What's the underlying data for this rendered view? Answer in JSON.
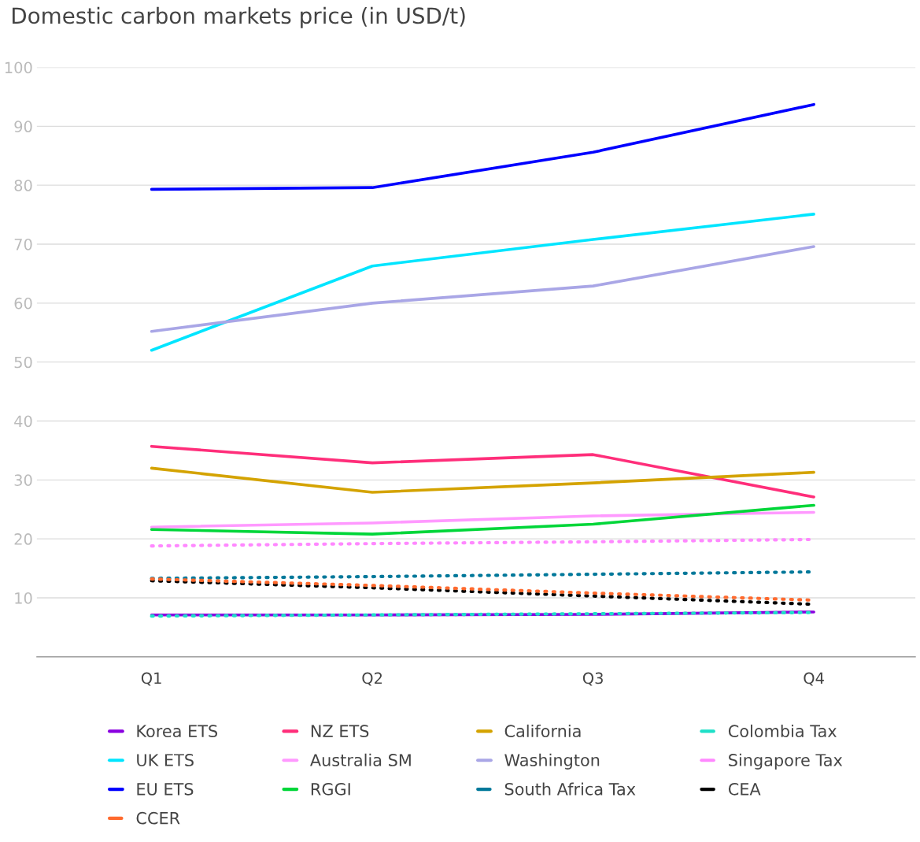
{
  "chart_data": {
    "type": "line",
    "title": "Domestic carbon markets price (in USD/t)",
    "categories": [
      "Q1",
      "Q2",
      "Q3",
      "Q4"
    ],
    "ylim": [
      0,
      100
    ],
    "yticks": [
      10,
      20,
      30,
      40,
      50,
      60,
      70,
      80,
      90,
      100
    ],
    "grid": "y",
    "legend": "bottom",
    "marker": "none",
    "series": [
      {
        "name": "Korea ETS",
        "color": "#8a00e0",
        "line_style": "solid",
        "values": [
          7.1,
          7.1,
          7.2,
          7.6
        ]
      },
      {
        "name": "NZ ETS",
        "color": "#ff2e7a",
        "line_style": "solid",
        "values": [
          35.7,
          32.9,
          34.3,
          27.1
        ]
      },
      {
        "name": "California",
        "color": "#d4a300",
        "line_style": "solid",
        "values": [
          32,
          27.9,
          29.5,
          31.3
        ]
      },
      {
        "name": "Colombia Tax",
        "color": "#1ee0c8",
        "line_style": "dotted",
        "values": [
          6.9,
          7.1,
          7.3,
          7.5
        ]
      },
      {
        "name": "UK ETS",
        "color": "#00e5ff",
        "line_style": "solid",
        "values": [
          52,
          66.3,
          70.8,
          75.1
        ]
      },
      {
        "name": "Australia SM",
        "color": "#ff99ff",
        "line_style": "solid",
        "values": [
          22,
          22.7,
          23.9,
          24.5
        ]
      },
      {
        "name": "Washington",
        "color": "#a9a6e6",
        "line_style": "solid",
        "values": [
          55.2,
          60,
          62.9,
          69.6
        ]
      },
      {
        "name": "Singapore Tax",
        "color": "#ff88ff",
        "line_style": "dotted",
        "values": [
          18.8,
          19.2,
          19.5,
          19.9
        ]
      },
      {
        "name": "EU ETS",
        "color": "#0000ff",
        "line_style": "solid",
        "values": [
          79.3,
          79.6,
          85.6,
          93.7
        ]
      },
      {
        "name": "RGGI",
        "color": "#00d639",
        "line_style": "solid",
        "values": [
          21.6,
          20.8,
          22.5,
          25.7
        ]
      },
      {
        "name": "South Africa Tax",
        "color": "#00789a",
        "line_style": "dotted",
        "values": [
          13.3,
          13.6,
          14,
          14.4
        ]
      },
      {
        "name": "CEA",
        "color": "#000000",
        "line_style": "dotted",
        "values": [
          12.9,
          11.7,
          10.3,
          8.9
        ]
      },
      {
        "name": "CCER",
        "color": "#ff6a2e",
        "line_style": "dotted",
        "values": [
          13.2,
          12.1,
          10.8,
          9.6
        ]
      }
    ]
  }
}
